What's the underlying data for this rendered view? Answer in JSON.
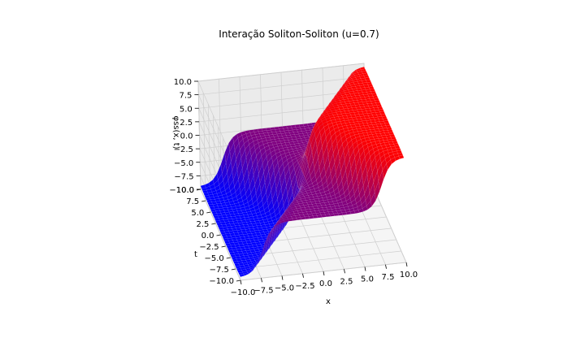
{
  "chart_data": {
    "type": "surface",
    "title": "Interação Soliton-Soliton (u=0.7)",
    "xlabel": "x",
    "ylabel": "t",
    "zlabel": "φss(x, t)",
    "xlim": [
      -10,
      10
    ],
    "ylim": [
      -10,
      10
    ],
    "zlim": [
      -10,
      10
    ],
    "x_ticks": [
      "−10.0",
      "−7.5",
      "−5.0",
      "−2.5",
      "0.0",
      "2.5",
      "5.0",
      "7.5",
      "10.0"
    ],
    "y_ticks": [
      "−10.0",
      "−7.5",
      "−5.0",
      "−2.5",
      "0.0",
      "2.5",
      "5.0",
      "7.5",
      "10.0"
    ],
    "z_ticks": [
      "−10.0",
      "−7.5",
      "−5.0",
      "−2.5",
      "0.0",
      "2.5",
      "5.0",
      "7.5",
      "10.0"
    ],
    "colormap": {
      "low": "#0000ff",
      "mid": "#800080",
      "high": "#ff0000"
    },
    "grid": true,
    "surface_description_function": "phi = 4*atan(u*sinh(x/sqrt(1-u^2))/cosh(u*t/sqrt(1-u^2)))",
    "u": 0.7
  }
}
